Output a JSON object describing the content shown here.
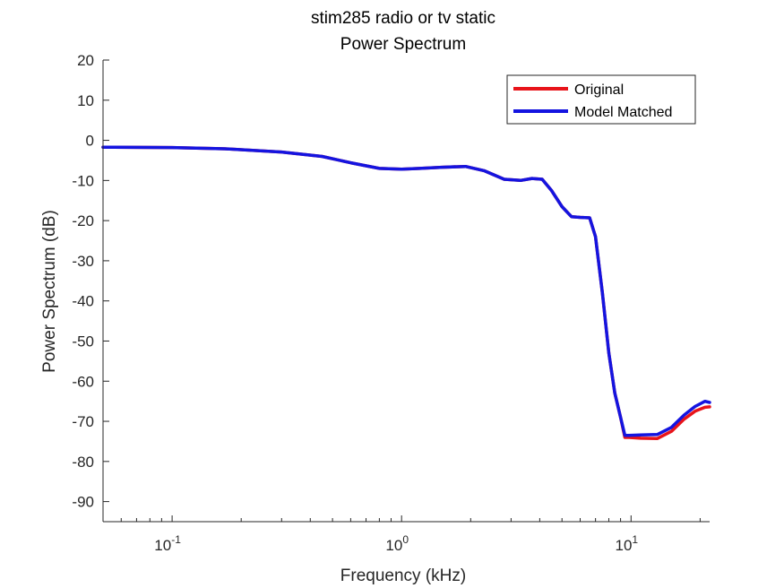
{
  "chart_data": {
    "type": "line",
    "title": "stim285 radio or tv static",
    "subtitle": "Power Spectrum",
    "xlabel": "Frequency (kHz)",
    "ylabel": "Power Spectrum (dB)",
    "xscale": "log",
    "xlim": [
      0.05,
      22
    ],
    "ylim": [
      -95,
      20
    ],
    "yticks": [
      20,
      10,
      0,
      -10,
      -20,
      -30,
      -40,
      -50,
      -60,
      -70,
      -80,
      -90
    ],
    "xticks": [
      {
        "value": 0.1,
        "base": "10",
        "exp": "-1"
      },
      {
        "value": 1,
        "base": "10",
        "exp": "0"
      },
      {
        "value": 10,
        "base": "10",
        "exp": "1"
      }
    ],
    "grid": false,
    "legend": {
      "placement": "top-right",
      "entries": [
        {
          "label": "Original",
          "color": "#e8141a"
        },
        {
          "label": "Model Matched",
          "color": "#1414e0"
        }
      ]
    },
    "series": [
      {
        "name": "Original",
        "color": "#e8141a",
        "x": [
          0.05,
          0.1,
          0.17,
          0.3,
          0.45,
          0.6,
          0.8,
          1.0,
          1.2,
          1.5,
          1.9,
          2.3,
          2.8,
          3.3,
          3.7,
          4.1,
          4.5,
          5.0,
          5.5,
          6.0,
          6.6,
          7.0,
          7.5,
          8.0,
          8.5,
          9.0,
          9.4,
          9.8,
          11.0,
          13.0,
          15.0,
          17.0,
          19.0,
          21.0,
          22.0
        ],
        "y": [
          -1.7,
          -1.8,
          -2.1,
          -2.9,
          -4.0,
          -5.6,
          -7.0,
          -7.2,
          -7.0,
          -6.7,
          -6.5,
          -7.6,
          -9.7,
          -10.0,
          -9.5,
          -9.7,
          -12.5,
          -16.5,
          -19.0,
          -19.2,
          -19.3,
          -24.0,
          -38.0,
          -53.0,
          -63.0,
          -69.0,
          -74.0,
          -74.0,
          -74.2,
          -74.3,
          -72.5,
          -69.5,
          -67.5,
          -66.5,
          -66.4
        ]
      },
      {
        "name": "Model Matched",
        "color": "#1414e0",
        "x": [
          0.05,
          0.1,
          0.17,
          0.3,
          0.45,
          0.6,
          0.8,
          1.0,
          1.2,
          1.5,
          1.9,
          2.3,
          2.8,
          3.3,
          3.7,
          4.1,
          4.5,
          5.0,
          5.5,
          6.0,
          6.6,
          7.0,
          7.5,
          8.0,
          8.5,
          9.0,
          9.4,
          9.8,
          11.0,
          13.0,
          15.0,
          17.0,
          19.0,
          21.0,
          22.0
        ],
        "y": [
          -1.7,
          -1.8,
          -2.1,
          -2.9,
          -4.0,
          -5.6,
          -7.0,
          -7.2,
          -7.0,
          -6.7,
          -6.5,
          -7.6,
          -9.7,
          -10.0,
          -9.5,
          -9.7,
          -12.5,
          -16.5,
          -19.0,
          -19.2,
          -19.3,
          -24.0,
          -38.0,
          -53.0,
          -63.0,
          -69.0,
          -73.5,
          -73.5,
          -73.4,
          -73.3,
          -71.5,
          -68.5,
          -66.3,
          -65.0,
          -65.3
        ]
      }
    ]
  }
}
